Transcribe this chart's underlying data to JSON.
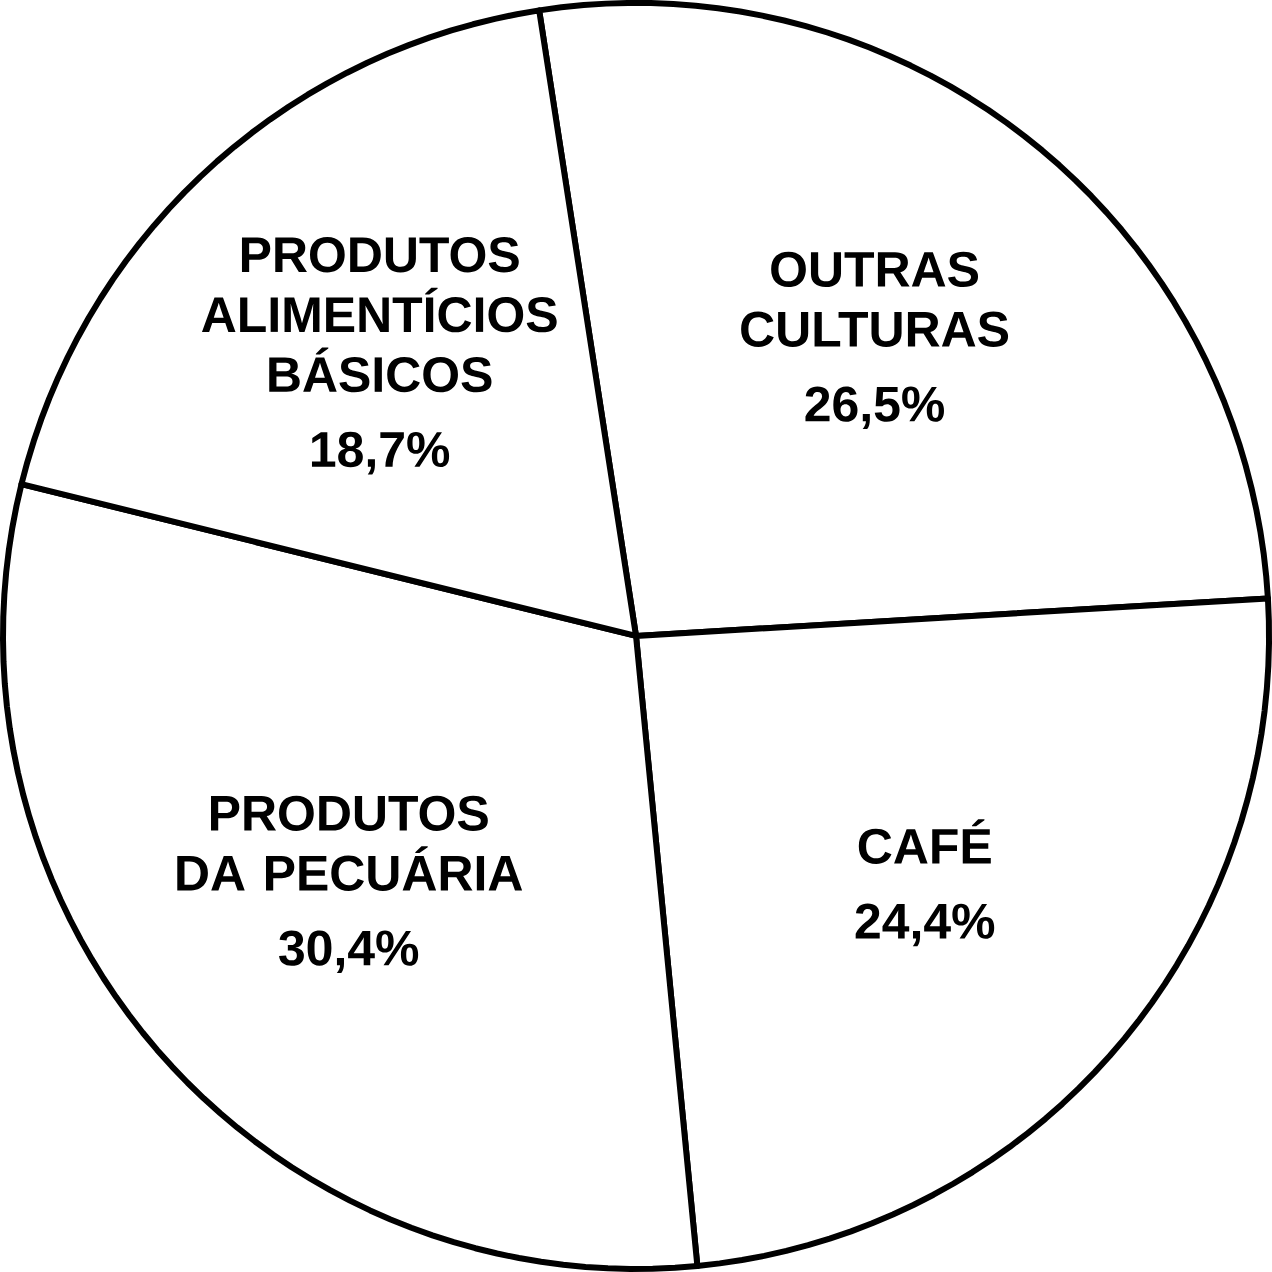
{
  "chart_data": {
    "type": "pie",
    "categories": [
      "OUTRAS CULTURAS",
      "CAFÉ",
      "PRODUTOS DA PECUÁRIA",
      "PRODUTOS ALIMENTÍCIOS BÁSICOS"
    ],
    "values": [
      26.5,
      24.4,
      30.4,
      18.7
    ],
    "value_labels": [
      "26,5%",
      "24,4%",
      "30,4%",
      "18,7%"
    ],
    "colors": [
      "#ffffff",
      "#ffffff",
      "#ffffff",
      "#ffffff"
    ]
  }
}
